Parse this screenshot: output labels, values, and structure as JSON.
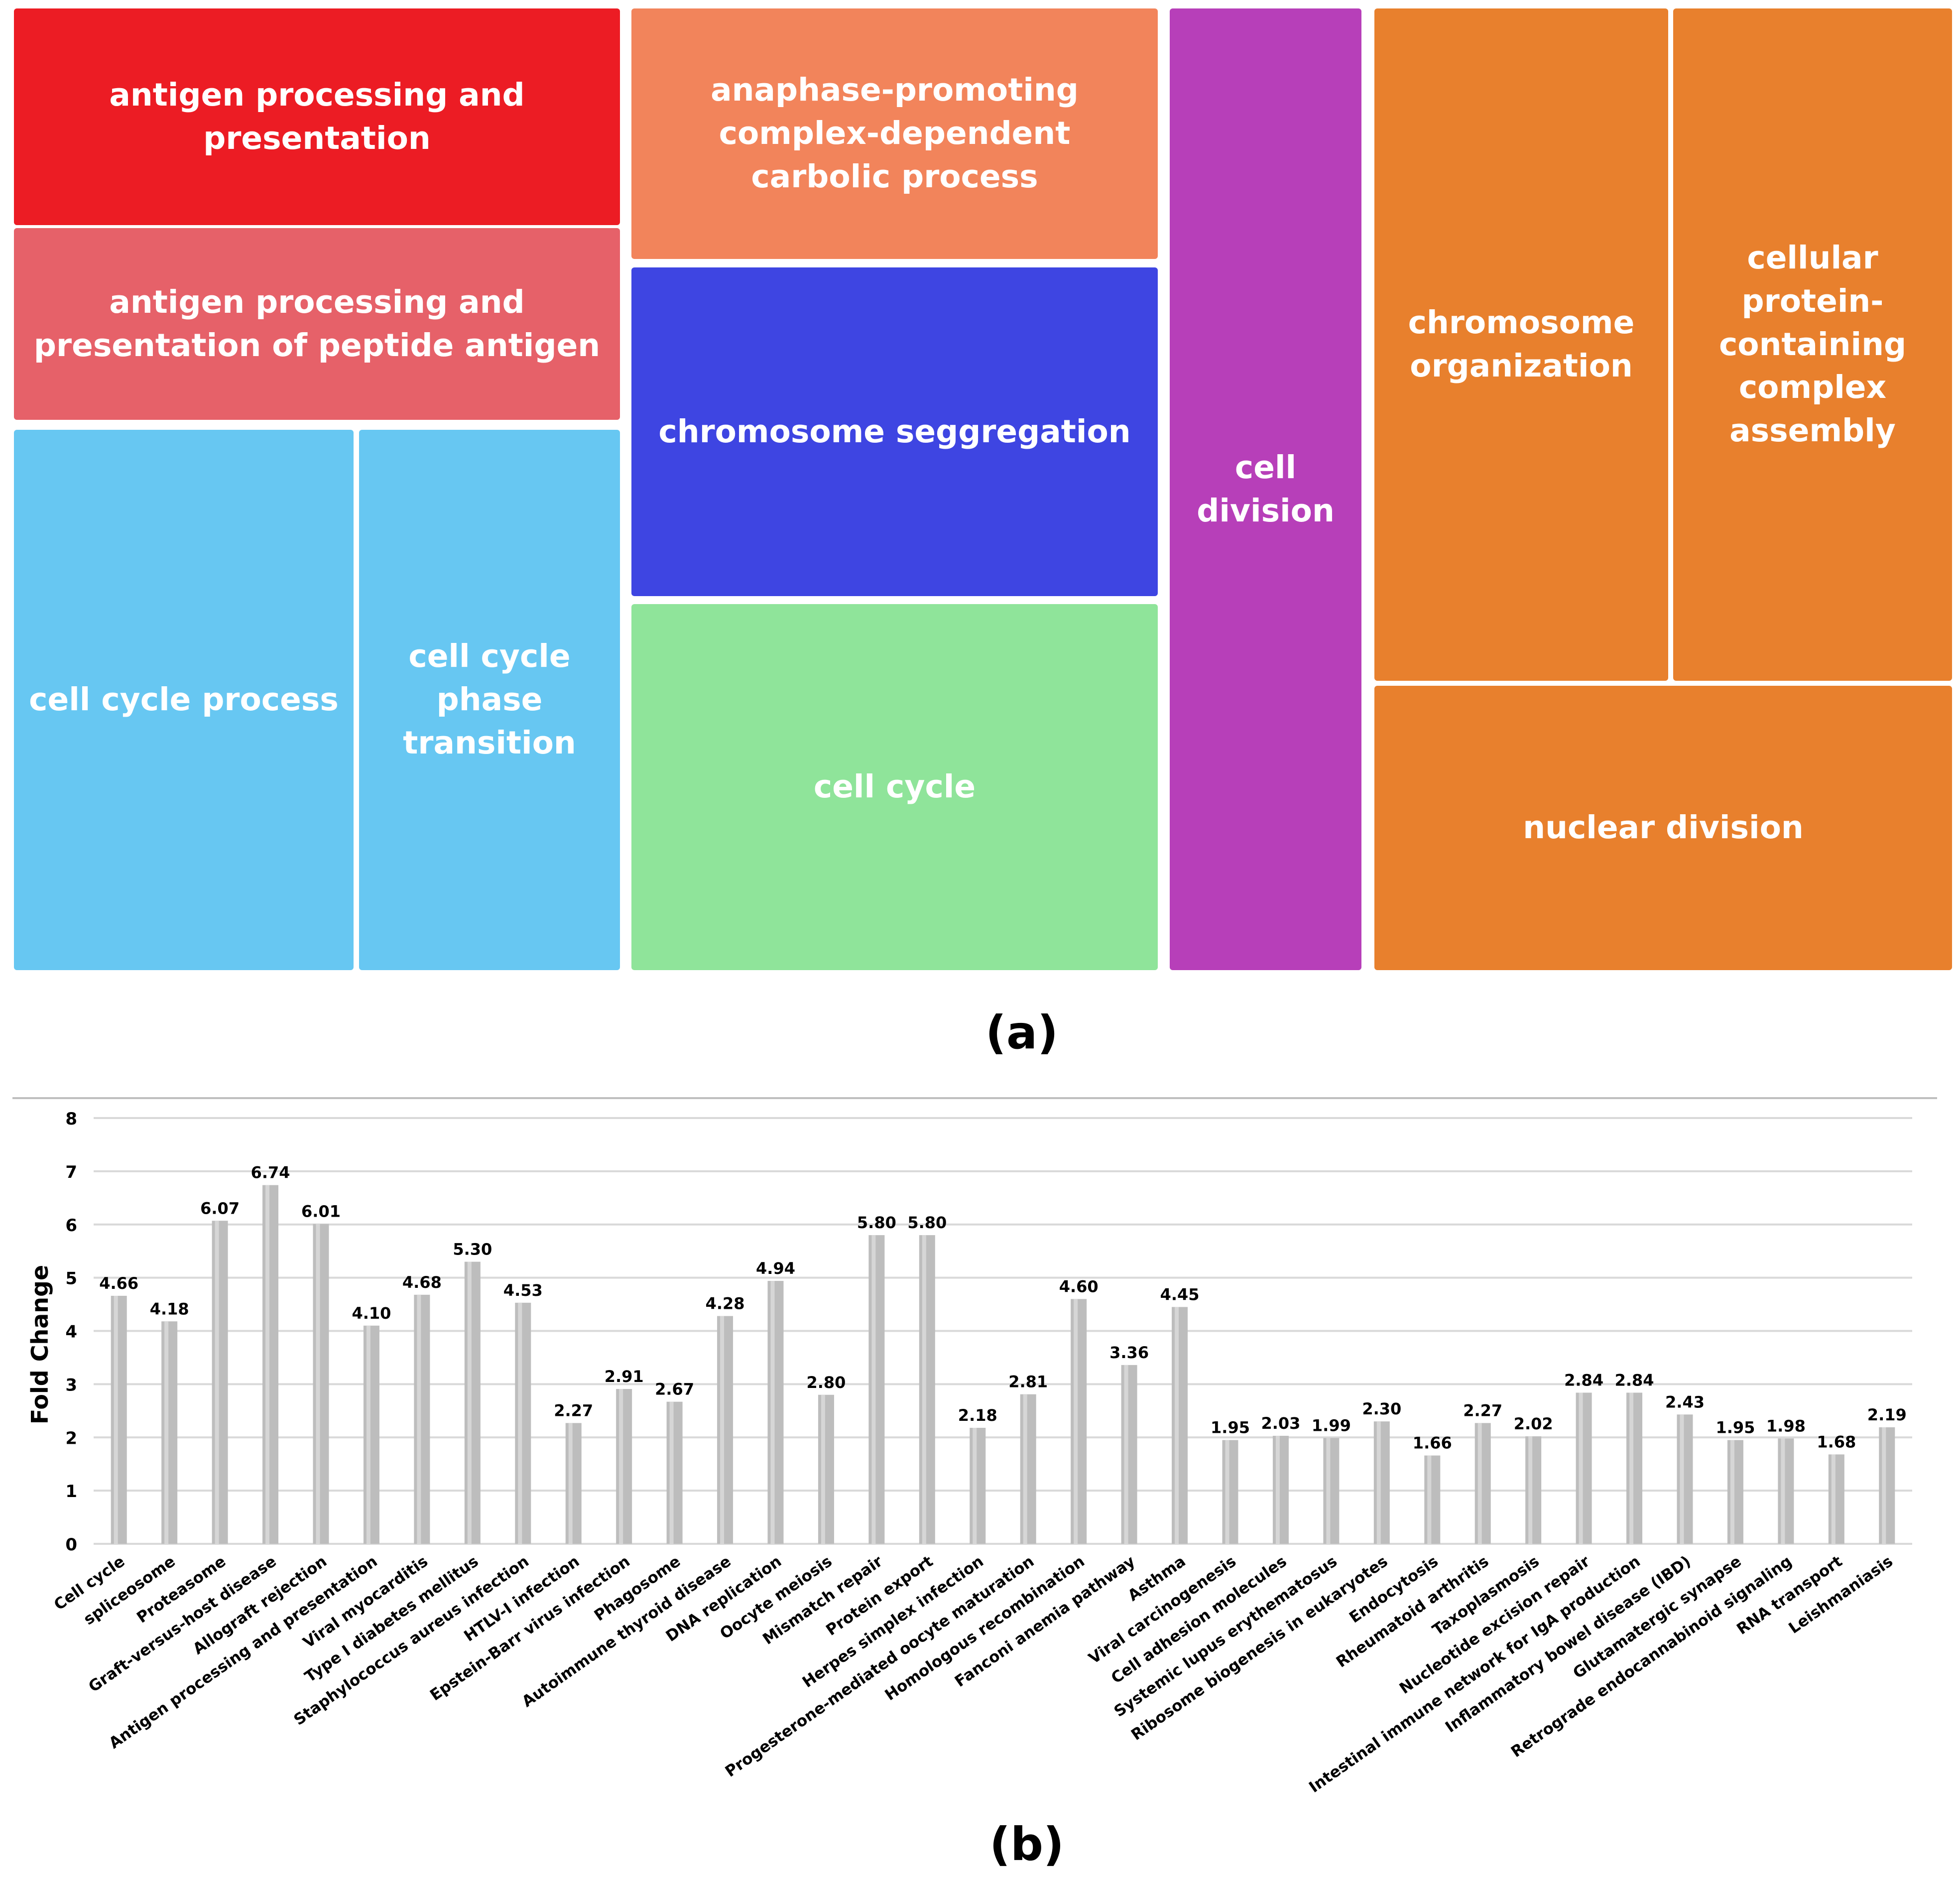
{
  "panel_a_label": "(a)",
  "panel_b_label": "(b)",
  "treemap": [
    {
      "label": "antigen processing and presentation",
      "color": "#ec1c24"
    },
    {
      "label": "antigen processing and presentation of peptide antigen",
      "color": "#e66169"
    },
    {
      "label": "cell cycle process",
      "color": "#67c7f2"
    },
    {
      "label": "cell cycle phase transition",
      "color": "#67c7f2"
    },
    {
      "label": "anaphase-promoting complex-dependent carbolic process",
      "color": "#f2845b"
    },
    {
      "label": "chromosome seggregation",
      "color": "#3e45e2"
    },
    {
      "label": "cell cycle",
      "color": "#8fe49a"
    },
    {
      "label": "cell division",
      "color": "#b73fb9"
    },
    {
      "label": "chromosome organization",
      "color": "#e8802d"
    },
    {
      "label": "cellular protein-containing complex assembly",
      "color": "#e8802d"
    },
    {
      "label": "nuclear division",
      "color": "#e8802d"
    }
  ],
  "chart_data": {
    "type": "bar",
    "title": "",
    "xlabel": "",
    "ylabel": "Fold Change",
    "ylim": [
      0,
      8
    ],
    "yticks": [
      "0",
      "1",
      "2",
      "3",
      "4",
      "5",
      "6",
      "7",
      "8"
    ],
    "grid": true,
    "bar_color": "#bdbdbd",
    "categories": [
      "Cell cycle",
      "spliceosome",
      "Proteasome",
      "Graft-versus-host disease",
      "Allograft rejection",
      "Antigen processing and presentation",
      "Viral myocarditis",
      "Type I diabetes mellitus",
      "Staphylococcus aureus infection",
      "HTLV-I infection",
      "Epstein-Barr virus infection",
      "Phagosome",
      "Autoimmune thyroid disease",
      "DNA replication",
      "Oocyte meiosis",
      "Mismatch repair",
      "Protein export",
      "Herpes simplex infection",
      "Progesterone-mediated oocyte maturation",
      "Homologous recombination",
      "Fanconi anemia pathway",
      "Asthma",
      "Viral carcinogenesis",
      "Cell adhesion molecules",
      "Systemic lupus erythematosus",
      "Ribosome biogenesis in eukaryotes",
      "Endocytosis",
      "Rheumatoid arthritis",
      "Taxoplasmosis",
      "Nucleotide excision repair",
      "Intestinal immune network for IgA production",
      "Inflammatory bowel disease (IBD)",
      "Glutamatergic synapse",
      "Retrograde endocannabinoid signaling",
      "RNA transport",
      "Leishmaniasis"
    ],
    "values": [
      4.66,
      4.18,
      6.07,
      6.74,
      6.01,
      4.1,
      4.68,
      5.3,
      4.53,
      2.27,
      2.91,
      2.67,
      4.28,
      4.94,
      2.8,
      5.8,
      5.8,
      2.18,
      2.81,
      4.6,
      3.36,
      4.45,
      1.95,
      2.03,
      1.99,
      2.3,
      1.66,
      2.27,
      2.02,
      2.84,
      2.84,
      2.43,
      1.95,
      1.98,
      1.68,
      2.19
    ],
    "value_labels": [
      "4.66",
      "4.18",
      "6.07",
      "6.74",
      "6.01",
      "4.10",
      "4.68",
      "5.30",
      "4.53",
      "2.27",
      "2.91",
      "2.67",
      "4.28",
      "4.94",
      "2.80",
      "5.80",
      "5.80",
      "2.18",
      "2.81",
      "4.60",
      "3.36",
      "4.45",
      "1.95",
      "2.03",
      "1.99",
      "2.30",
      "1.66",
      "2.27",
      "2.02",
      "2.84",
      "2.84",
      "2.43",
      "1.95",
      "1.98",
      "1.68",
      "2.19"
    ]
  }
}
